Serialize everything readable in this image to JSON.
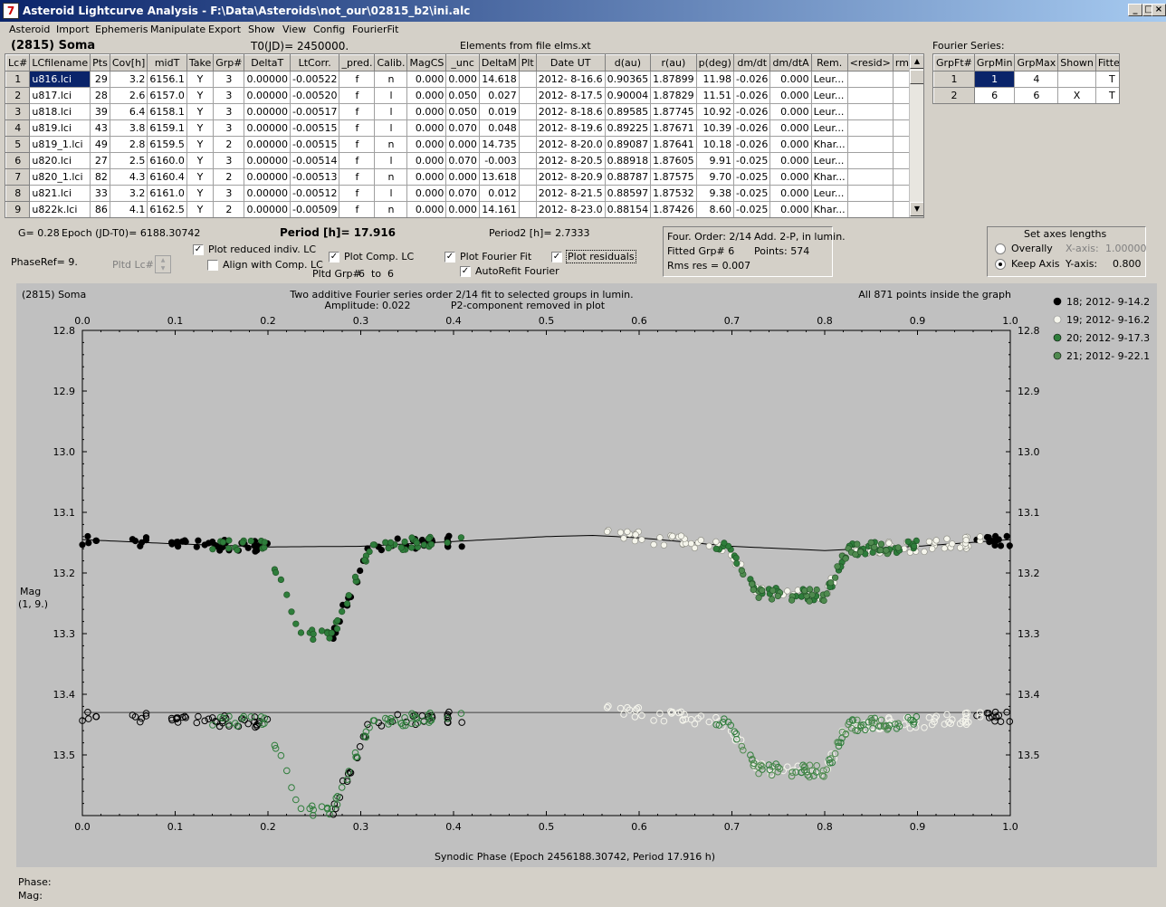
{
  "window": {
    "title": "Asteroid Lightcurve Analysis - F:\\Data\\Asteroids\\not_our\\02815_b2\\ini.alc",
    "icon_glyph": "7",
    "minimize": "_",
    "maximize": "□",
    "close": "×"
  },
  "menu": [
    "Asteroid",
    "Import",
    "Ephemeris",
    "Manipulate",
    "Export",
    "Show",
    "View",
    "Config",
    "FourierFit"
  ],
  "header": {
    "asteroid": "(2815) Soma",
    "t0": "T0(JD)= 2450000.",
    "elements": "Elements from file elms.xt",
    "fourier_series": "Fourier Series:"
  },
  "lc_table": {
    "columns": [
      "Lc#",
      "LCfilename",
      "Pts",
      "Cov[h]",
      "midT",
      "Take",
      "Grp#",
      "DeltaT",
      "LtCorr.",
      "_pred.",
      "Calib.",
      "MagCS",
      "_unc",
      "DeltaM",
      "Plt",
      "Date UT",
      "d(au)",
      "r(au)",
      "p(deg)",
      "dm/dt",
      "dm/dtA",
      "Rem.",
      "<resid>",
      "rms res"
    ],
    "rows": [
      [
        "1",
        "u816.lci",
        "29",
        "3.2",
        "6156.1",
        "Y",
        "3",
        "0.00000",
        "-0.00522",
        "f",
        "n",
        "0.000",
        "0.000",
        "14.618",
        "",
        "2012- 8-16.6",
        "0.90365",
        "1.87899",
        "11.98",
        "-0.026",
        "0.000",
        "Leur...",
        "",
        ""
      ],
      [
        "2",
        "u817.lci",
        "28",
        "2.6",
        "6157.0",
        "Y",
        "3",
        "0.00000",
        "-0.00520",
        "f",
        "l",
        "0.000",
        "0.050",
        "0.027",
        "",
        "2012- 8-17.5",
        "0.90004",
        "1.87829",
        "11.51",
        "-0.026",
        "0.000",
        "Leur...",
        "",
        ""
      ],
      [
        "3",
        "u818.lci",
        "39",
        "6.4",
        "6158.1",
        "Y",
        "3",
        "0.00000",
        "-0.00517",
        "f",
        "l",
        "0.000",
        "0.050",
        "0.019",
        "",
        "2012- 8-18.6",
        "0.89585",
        "1.87745",
        "10.92",
        "-0.026",
        "0.000",
        "Leur...",
        "",
        ""
      ],
      [
        "4",
        "u819.lci",
        "43",
        "3.8",
        "6159.1",
        "Y",
        "3",
        "0.00000",
        "-0.00515",
        "f",
        "l",
        "0.000",
        "0.070",
        "0.048",
        "",
        "2012- 8-19.6",
        "0.89225",
        "1.87671",
        "10.39",
        "-0.026",
        "0.000",
        "Leur...",
        "",
        ""
      ],
      [
        "5",
        "u819_1.lci",
        "49",
        "2.8",
        "6159.5",
        "Y",
        "2",
        "0.00000",
        "-0.00515",
        "f",
        "n",
        "0.000",
        "0.000",
        "14.735",
        "",
        "2012- 8-20.0",
        "0.89087",
        "1.87641",
        "10.18",
        "-0.026",
        "0.000",
        "Khar...",
        "",
        ""
      ],
      [
        "6",
        "u820.lci",
        "27",
        "2.5",
        "6160.0",
        "Y",
        "3",
        "0.00000",
        "-0.00514",
        "f",
        "l",
        "0.000",
        "0.070",
        "-0.003",
        "",
        "2012- 8-20.5",
        "0.88918",
        "1.87605",
        "9.91",
        "-0.025",
        "0.000",
        "Leur...",
        "",
        ""
      ],
      [
        "7",
        "u820_1.lci",
        "82",
        "4.3",
        "6160.4",
        "Y",
        "2",
        "0.00000",
        "-0.00513",
        "f",
        "n",
        "0.000",
        "0.000",
        "13.618",
        "",
        "2012- 8-20.9",
        "0.88787",
        "1.87575",
        "9.70",
        "-0.025",
        "0.000",
        "Khar...",
        "",
        ""
      ],
      [
        "8",
        "u821.lci",
        "33",
        "3.2",
        "6161.0",
        "Y",
        "3",
        "0.00000",
        "-0.00512",
        "f",
        "l",
        "0.000",
        "0.070",
        "0.012",
        "",
        "2012- 8-21.5",
        "0.88597",
        "1.87532",
        "9.38",
        "-0.025",
        "0.000",
        "Leur...",
        "",
        ""
      ],
      [
        "9",
        "u822k.lci",
        "86",
        "4.1",
        "6162.5",
        "Y",
        "2",
        "0.00000",
        "-0.00509",
        "f",
        "n",
        "0.000",
        "0.000",
        "14.161",
        "",
        "2012- 8-23.0",
        "0.88154",
        "1.87426",
        "8.60",
        "-0.025",
        "0.000",
        "Khar...",
        "",
        ""
      ]
    ]
  },
  "fourier_table": {
    "columns": [
      "GrpFt#",
      "GrpMin",
      "GrpMax",
      "Shown",
      "Fitted"
    ],
    "rows": [
      [
        "1",
        "1",
        "4",
        "",
        "T"
      ],
      [
        "2",
        "6",
        "6",
        "X",
        "T"
      ]
    ]
  },
  "controls": {
    "g": "G= 0.28",
    "epoch": "Epoch (JD-T0)= 6188.30742",
    "period": "Period [h]= 17.916",
    "period2": "Period2 [h]= 2.7333",
    "phaseref": "PhaseRef= 9.",
    "pltd_lc": "Pltd Lc#:",
    "plot_reduced": "Plot reduced indiv. LC",
    "align_comp": "Align with Comp. LC",
    "plot_comp": "Plot Comp. LC",
    "pltd_grp": "Pltd Grp#",
    "grp_from": "6",
    "grp_to_label": "to",
    "grp_to": "6",
    "plot_fourier": "Plot Fourier Fit",
    "autorefit": "AutoRefit Fourier",
    "plot_residuals": "Plot residuals",
    "check_mark": "✓",
    "four_order": "Four. Order:  2/14",
    "add_2p": "Add. 2-P, in lumin.",
    "fitted_grp": "Fitted Grp# 6",
    "points": "Points: 574",
    "rms_res": "Rms res     = 0.007",
    "axes_title": "Set axes lengths",
    "overally": "Overally",
    "keep_axis": "Keep Axis",
    "xaxis_label": "X-axis:",
    "xaxis_val": "1.00000",
    "yaxis_label": "Y-axis:",
    "yaxis_val": "0.800"
  },
  "chart_data": {
    "type": "scatter",
    "title_left": "(2815) Soma",
    "title_center_1": "Two additive Fourier series order 2/14 fit to selected groups in lumin.",
    "title_center_2a": "Amplitude: 0.022",
    "title_center_2b": "P2-component removed in plot",
    "title_right": "All 871 points inside the graph",
    "xlabel": "Synodic Phase (Epoch 2456188.30742, Period 17.916 h)",
    "ylabel_1": "Mag",
    "ylabel_2": "(1, 9.)",
    "xlim": [
      0.0,
      1.0
    ],
    "ylim": [
      12.8,
      13.6
    ],
    "y_inverted": true,
    "x_ticks": [
      "0.0",
      "0.1",
      "0.2",
      "0.3",
      "0.4",
      "0.5",
      "0.6",
      "0.7",
      "0.8",
      "0.9",
      "1.0"
    ],
    "y_ticks": [
      "12.8",
      "12.9",
      "13.0",
      "13.1",
      "13.2",
      "13.3",
      "13.4",
      "13.5"
    ],
    "residual_offset": 0.29,
    "series": [
      {
        "name": "18; 2012- 9-14.2",
        "color": "#000000",
        "ranges": [
          [
            0.0,
            0.02
          ],
          [
            0.045,
            0.2
          ],
          [
            0.27,
            0.41
          ],
          [
            0.955,
            1.0
          ]
        ]
      },
      {
        "name": "19; 2012- 9-16.2",
        "color": "#f5f5ec",
        "ranges": [
          [
            0.565,
            0.97
          ]
        ]
      },
      {
        "name": "20; 2012- 9-17.3",
        "color": "#2e7d3b",
        "ranges": [
          [
            0.14,
            0.41
          ],
          [
            0.68,
            0.9
          ]
        ]
      },
      {
        "name": "21; 2012- 9-22.1",
        "color": "#4f8a4f",
        "ranges": [
          [
            0.7,
            0.88
          ]
        ]
      }
    ],
    "model_curve": [
      [
        0.0,
        13.145
      ],
      [
        0.1,
        13.152
      ],
      [
        0.2,
        13.157
      ],
      [
        0.3,
        13.156
      ],
      [
        0.4,
        13.148
      ],
      [
        0.5,
        13.14
      ],
      [
        0.55,
        13.138
      ],
      [
        0.6,
        13.142
      ],
      [
        0.7,
        13.156
      ],
      [
        0.8,
        13.163
      ],
      [
        0.9,
        13.156
      ],
      [
        1.0,
        13.145
      ]
    ],
    "eclipse_1": {
      "start": 0.2,
      "bottom_start": 0.235,
      "bottom_end": 0.27,
      "end": 0.31,
      "depth": 0.145
    },
    "eclipse_2": {
      "start": 0.695,
      "bottom_start": 0.725,
      "bottom_end": 0.8,
      "end": 0.825,
      "depth": 0.075
    }
  },
  "status": {
    "phase": "Phase:",
    "mag": "Mag:"
  },
  "scroll_up": "▲",
  "scroll_down": "▼",
  "spin_up": "▲",
  "spin_down": "▼"
}
